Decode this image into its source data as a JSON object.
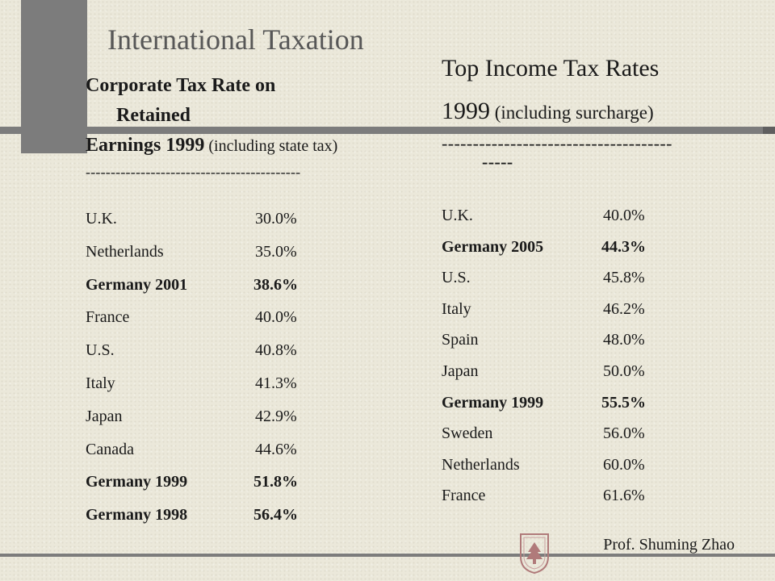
{
  "slide": {
    "title": "International Taxation",
    "footer": "Prof. Shuming Zhao"
  },
  "left": {
    "heading_line1": "Corporate Tax Rate on",
    "heading_line2": "Retained",
    "heading_line3_bold": "Earnings 1999",
    "heading_line3_note": " (including state tax)",
    "dashes": "-------------------------------------------",
    "rows": [
      {
        "country": "U.K.",
        "rate": "30.0%",
        "highlight": false
      },
      {
        "country": "Netherlands",
        "rate": "35.0%",
        "highlight": false
      },
      {
        "country": "Germany 2001",
        "rate": "38.6%",
        "highlight": true
      },
      {
        "country": "France",
        "rate": "40.0%",
        "highlight": false
      },
      {
        "country": "U.S.",
        "rate": "40.8%",
        "highlight": false
      },
      {
        "country": "Italy",
        "rate": "41.3%",
        "highlight": false
      },
      {
        "country": "Japan",
        "rate": "42.9%",
        "highlight": false
      },
      {
        "country": "Canada",
        "rate": "44.6%",
        "highlight": false
      },
      {
        "country": "Germany 1999",
        "rate": "51.8%",
        "highlight": true
      },
      {
        "country": "Germany 1998",
        "rate": "56.4%",
        "highlight": true
      }
    ]
  },
  "right": {
    "heading_line1": "Top Income Tax Rates",
    "heading_line2_year": "1999",
    "heading_line2_note": " (including surcharge)",
    "dashes_line1": "-------------------------------------",
    "dashes_line2": "-----",
    "rows": [
      {
        "country": "U.K.",
        "rate": "40.0%",
        "highlight": false
      },
      {
        "country": "Germany 2005",
        "rate": "44.3%",
        "highlight": true
      },
      {
        "country": "U.S.",
        "rate": "45.8%",
        "highlight": false
      },
      {
        "country": "Italy",
        "rate": "46.2%",
        "highlight": false
      },
      {
        "country": "Spain",
        "rate": "48.0%",
        "highlight": false
      },
      {
        "country": "Japan",
        "rate": "50.0%",
        "highlight": false
      },
      {
        "country": "Germany 1999",
        "rate": "55.5%",
        "highlight": true
      },
      {
        "country": "Sweden",
        "rate": "56.0%",
        "highlight": false
      },
      {
        "country": "Netherlands",
        "rate": "60.0%",
        "highlight": false
      },
      {
        "country": "France",
        "rate": "61.6%",
        "highlight": false
      }
    ]
  }
}
